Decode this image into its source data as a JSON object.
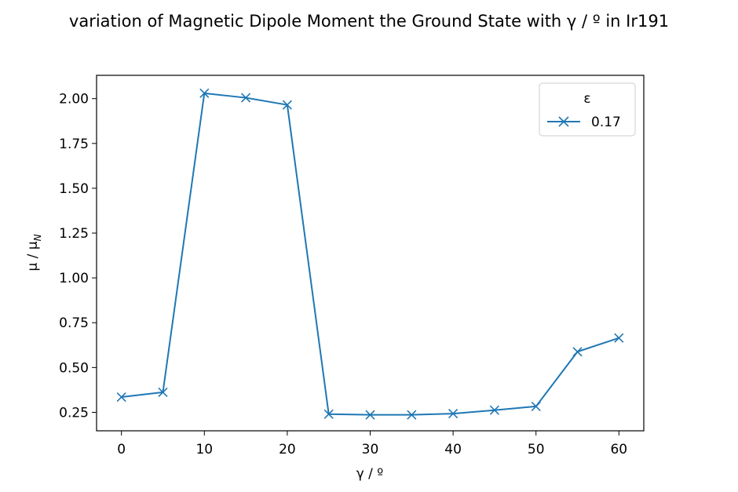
{
  "chart_data": {
    "type": "line",
    "title": "variation of Magnetic Dipole Moment the Ground State with γ / º in Ir191",
    "xlabel": "γ / º",
    "ylabel_main": "μ / μ",
    "ylabel_sub": "N",
    "xlim": [
      -3,
      63
    ],
    "ylim": [
      0.147,
      2.13
    ],
    "xticks": [
      0,
      10,
      20,
      30,
      40,
      50,
      60
    ],
    "xtick_labels": [
      "0",
      "10",
      "20",
      "30",
      "40",
      "50",
      "60"
    ],
    "yticks": [
      0.25,
      0.5,
      0.75,
      1.0,
      1.25,
      1.5,
      1.75,
      2.0
    ],
    "ytick_labels": [
      "0.25",
      "0.50",
      "0.75",
      "1.00",
      "1.25",
      "1.50",
      "1.75",
      "2.00"
    ],
    "grid": false,
    "legend": {
      "title": "ε",
      "placement": "top-right",
      "entries": [
        "0.17"
      ]
    },
    "series": [
      {
        "name": "0.17",
        "color": "#1f77b4",
        "marker": "x",
        "x": [
          0,
          5,
          10,
          15,
          20,
          25,
          30,
          35,
          40,
          45,
          50,
          55,
          60
        ],
        "y": [
          0.335,
          0.362,
          2.03,
          2.005,
          1.965,
          0.24,
          0.236,
          0.236,
          0.243,
          0.262,
          0.283,
          0.588,
          0.665
        ]
      }
    ]
  }
}
